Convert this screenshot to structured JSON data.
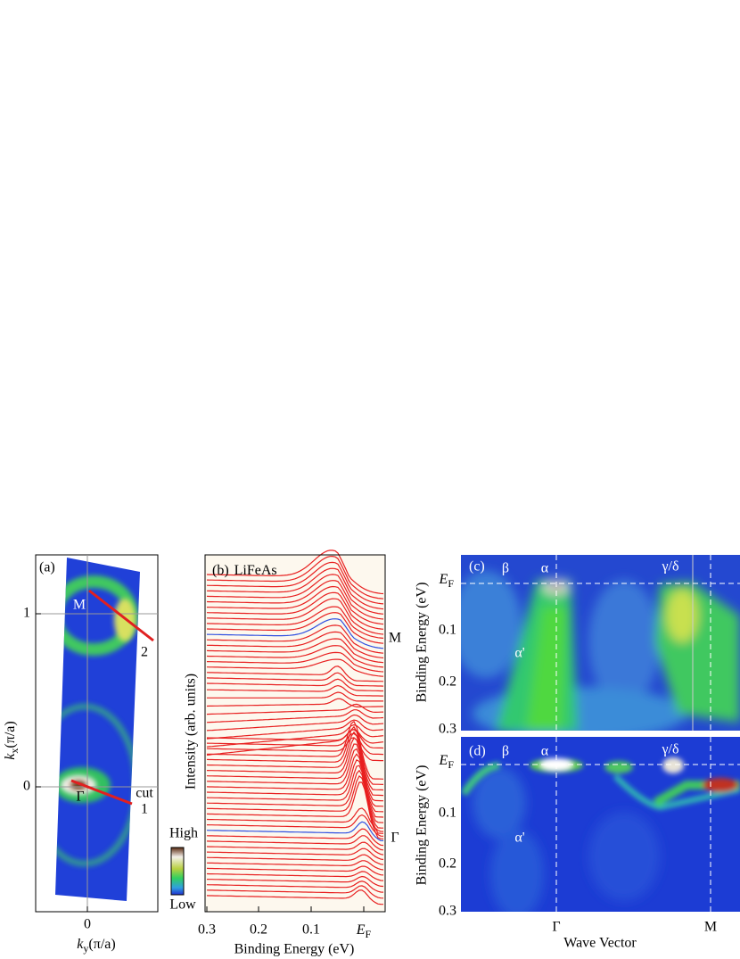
{
  "panels": [
    {
      "label": "(a)",
      "x_axis": {
        "title": [
          "k",
          "y",
          "(π/a)"
        ],
        "ticks": [
          0
        ]
      },
      "y_axis": {
        "title": [
          "k",
          "x",
          "(π/a)"
        ],
        "ticks": [
          1,
          0
        ]
      },
      "annotations": [
        "M",
        "2",
        "Γ",
        "cut",
        "1"
      ],
      "colorbar": [
        "High",
        "Low"
      ]
    },
    {
      "label": "(b)",
      "sample": "LiFeAs",
      "y_axis": {
        "title": "Intensity (arb. units)"
      },
      "x_axis": {
        "title": "Binding Energy (eV)",
        "ticks": [
          0.3,
          0.2,
          0.1,
          [
            "E",
            "F"
          ]
        ]
      },
      "annotations": [
        "M",
        "Γ"
      ]
    },
    {
      "label": "(c)",
      "bands": [
        "β",
        "α",
        "γ/δ",
        "α'"
      ],
      "y_axis": {
        "title": "Binding Energy (eV)",
        "ticks": [
          [
            "E",
            "F"
          ],
          0.1,
          0.2,
          0.3
        ]
      }
    },
    {
      "label": "(d)",
      "bands": [
        "β",
        "α",
        "γ/δ",
        "α'"
      ],
      "y_axis": {
        "title": "Binding Energy (eV)",
        "ticks": [
          [
            "E",
            "F"
          ],
          0.1,
          0.2,
          0.3
        ]
      }
    }
  ],
  "shared_x_axis": {
    "title": "Wave Vector",
    "ticks": [
      "Γ",
      "M"
    ]
  }
}
